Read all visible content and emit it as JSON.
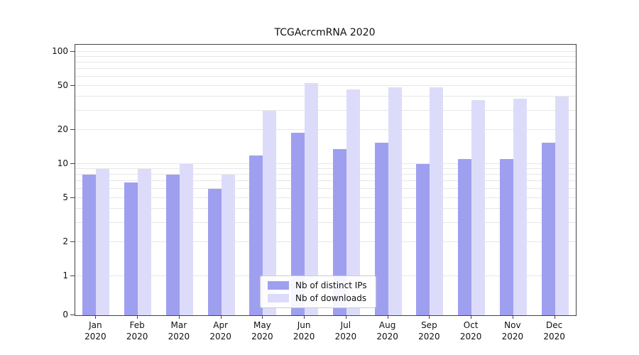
{
  "title": "TCGAcrcmRNA 2020",
  "chart_data": {
    "type": "bar",
    "title": "TCGAcrcmRNA 2020",
    "categories": [
      "Jan 2020",
      "Feb 2020",
      "Mar 2020",
      "Apr 2020",
      "May 2020",
      "Jun 2020",
      "Jul 2020",
      "Aug 2020",
      "Sep 2020",
      "Oct 2020",
      "Nov 2020",
      "Dec 2020"
    ],
    "series": [
      {
        "name": "Nb of distinct IPs",
        "color": "#9f9ff0",
        "values": [
          8,
          6.8,
          8,
          6,
          12,
          19,
          13.5,
          15.5,
          10,
          11,
          11,
          15.5
        ]
      },
      {
        "name": "Nb of downloads",
        "color": "#dcdcfa",
        "values": [
          9,
          9,
          10,
          8,
          30,
          53,
          46,
          48,
          48,
          37,
          38,
          40
        ]
      }
    ],
    "yscale": "symlog",
    "ylim": [
      0,
      100
    ],
    "ytick_labels": [
      "100",
      "50",
      "20",
      "10",
      "5",
      "2",
      "1",
      "0"
    ],
    "ytick_values": [
      100,
      50,
      20,
      10,
      5,
      2,
      1,
      0
    ],
    "grid_values": [
      1,
      2,
      3,
      4,
      5,
      6,
      7,
      8,
      9,
      10,
      20,
      30,
      40,
      50,
      60,
      70,
      80,
      90,
      100
    ],
    "grid": true,
    "legend_position": "lower center",
    "xlabel": "",
    "ylabel": ""
  }
}
